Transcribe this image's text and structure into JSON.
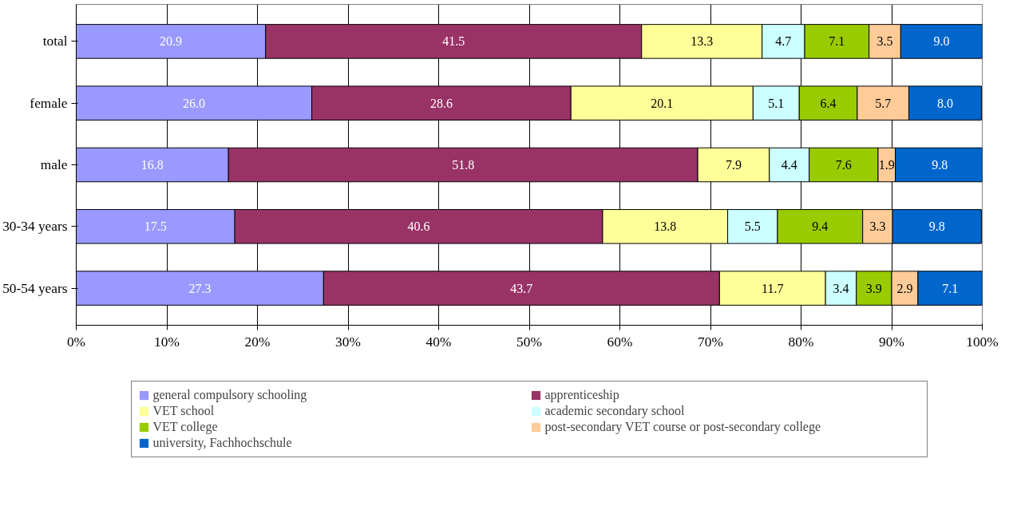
{
  "chart_data": {
    "type": "bar",
    "orientation": "horizontal",
    "stacked": true,
    "grid": "x",
    "legend": "bottom",
    "categories": [
      "total",
      "female",
      "male",
      "30-34 years",
      "50-54 years"
    ],
    "xlim": [
      0,
      100
    ],
    "xticks": [
      {
        "value": 0,
        "label": "0%"
      },
      {
        "value": 10,
        "label": "10%"
      },
      {
        "value": 20,
        "label": "20%"
      },
      {
        "value": 30,
        "label": "30%"
      },
      {
        "value": 40,
        "label": "40%"
      },
      {
        "value": 50,
        "label": "50%"
      },
      {
        "value": 60,
        "label": "60%"
      },
      {
        "value": 70,
        "label": "70%"
      },
      {
        "value": 80,
        "label": "80%"
      },
      {
        "value": 90,
        "label": "90%"
      },
      {
        "value": 100,
        "label": "100%"
      }
    ],
    "series": [
      {
        "name": "general compulsory schooling",
        "color": "#9999ff",
        "values": [
          20.9,
          26.0,
          16.8,
          17.5,
          27.3
        ],
        "value_labels": [
          "20.9",
          "26.0",
          "16.8",
          "17.5",
          "27.3"
        ]
      },
      {
        "name": "apprenticeship",
        "color": "#993366",
        "values": [
          41.5,
          28.6,
          51.8,
          40.6,
          43.7
        ],
        "value_labels": [
          "41.5",
          "28.6",
          "51.8",
          "40.6",
          "43.7"
        ]
      },
      {
        "name": "VET school",
        "color": "#ffff99",
        "values": [
          13.3,
          20.1,
          7.9,
          13.8,
          11.7
        ],
        "value_labels": [
          "13.3",
          "20.1",
          "7.9",
          "13.8",
          "11.7"
        ]
      },
      {
        "name": "academic secondary school",
        "color": "#ccffff",
        "values": [
          4.7,
          5.1,
          4.4,
          5.5,
          3.4
        ],
        "value_labels": [
          "4.7",
          "5.1",
          "4.4",
          "5.5",
          "3.4"
        ]
      },
      {
        "name": "VET college",
        "color": "#99cc00",
        "values": [
          7.1,
          6.4,
          7.6,
          9.4,
          3.9
        ],
        "value_labels": [
          "7.1",
          "6.4",
          "7.6",
          "9.4",
          "3.9"
        ]
      },
      {
        "name": "post-secondary VET course or post-secondary college",
        "color": "#ffcc99",
        "values": [
          3.5,
          5.7,
          1.9,
          3.3,
          2.9
        ],
        "value_labels": [
          "3.5",
          "5.7",
          "1.9",
          "3.3",
          "2.9"
        ]
      },
      {
        "name": "university, Fachhochschule",
        "color": "#0066cc",
        "values": [
          9.0,
          8.0,
          9.8,
          9.8,
          7.1
        ],
        "value_labels": [
          "9.0",
          "8.0",
          "9.8",
          "9.8",
          "7.1"
        ]
      }
    ]
  }
}
